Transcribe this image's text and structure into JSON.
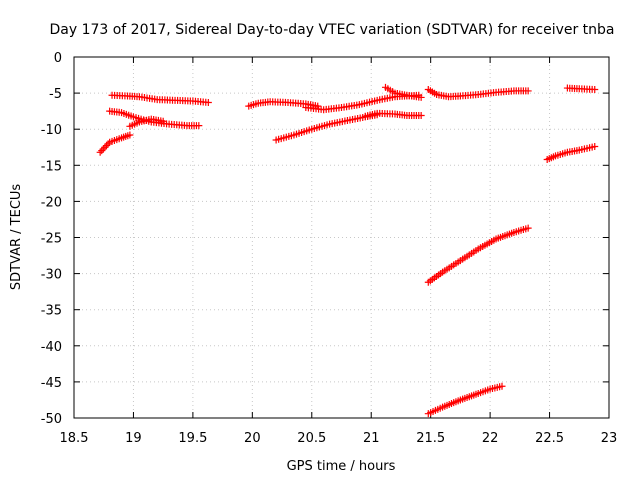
{
  "chart_data": {
    "type": "scatter",
    "title": "Day 173 of 2017, Sidereal Day-to-day VTEC variation (SDTVAR) for receiver tnba",
    "xlabel": "GPS time / hours",
    "ylabel": "SDTVAR / TECUs",
    "xlim": [
      18.5,
      23
    ],
    "ylim": [
      -50,
      0
    ],
    "xticks": [
      18.5,
      19,
      19.5,
      20,
      20.5,
      21,
      21.5,
      22,
      22.5,
      23
    ],
    "yticks": [
      0,
      -5,
      -10,
      -15,
      -20,
      -25,
      -30,
      -35,
      -40,
      -45,
      -50
    ],
    "xtick_labels": [
      "18.5",
      "19",
      "19.5",
      "20",
      "20.5",
      "21",
      "21.5",
      "22",
      "22.5",
      "23"
    ],
    "ytick_labels": [
      "0",
      "-5",
      "-10",
      "-15",
      "-20",
      "-25",
      "-30",
      "-35",
      "-40",
      "-45",
      "-50"
    ],
    "grid": true,
    "marker": "plus",
    "color": "#ff0000",
    "series": [
      {
        "x": [
          18.72,
          18.8,
          18.9,
          18.97
        ],
        "y": [
          -13.2,
          -11.8,
          -11.2,
          -10.8
        ]
      },
      {
        "x": [
          18.82,
          18.95,
          19.05,
          19.2,
          19.35,
          19.5,
          19.63
        ],
        "y": [
          -5.3,
          -5.4,
          -5.5,
          -5.9,
          -6.0,
          -6.1,
          -6.3
        ]
      },
      {
        "x": [
          18.8,
          18.9,
          19.0,
          19.15,
          19.3,
          19.45,
          19.55
        ],
        "y": [
          -7.5,
          -7.7,
          -8.3,
          -9.0,
          -9.3,
          -9.5,
          -9.5
        ]
      },
      {
        "x": [
          18.97,
          19.05,
          19.15,
          19.25
        ],
        "y": [
          -9.6,
          -9.0,
          -8.6,
          -8.9
        ]
      },
      {
        "x": [
          19.97,
          20.05,
          20.15,
          20.3,
          20.45,
          20.55
        ],
        "y": [
          -6.8,
          -6.4,
          -6.2,
          -6.3,
          -6.5,
          -6.8
        ]
      },
      {
        "x": [
          20.2,
          20.35,
          20.5,
          20.65,
          20.8,
          20.95,
          21.05
        ],
        "y": [
          -11.5,
          -10.8,
          -10.0,
          -9.3,
          -8.8,
          -8.3,
          -8.0
        ]
      },
      {
        "x": [
          20.45,
          20.6,
          20.75,
          20.9,
          21.05,
          21.2,
          21.4
        ],
        "y": [
          -7.0,
          -7.3,
          -7.0,
          -6.6,
          -6.0,
          -5.5,
          -5.3
        ]
      },
      {
        "x": [
          20.95,
          21.05,
          21.2,
          21.3,
          21.42
        ],
        "y": [
          -8.2,
          -7.8,
          -7.9,
          -8.1,
          -8.1
        ]
      },
      {
        "x": [
          21.12,
          21.2,
          21.3,
          21.42
        ],
        "y": [
          -4.2,
          -5.0,
          -5.3,
          -5.6
        ]
      },
      {
        "x": [
          21.48,
          21.55,
          21.65,
          21.75,
          21.9,
          22.05,
          22.2,
          22.32
        ],
        "y": [
          -4.5,
          -5.2,
          -5.5,
          -5.4,
          -5.2,
          -4.9,
          -4.7,
          -4.7
        ]
      },
      {
        "x": [
          21.48,
          21.6,
          21.75,
          21.9,
          22.05,
          22.2,
          22.32
        ],
        "y": [
          -31.2,
          -29.8,
          -28.2,
          -26.6,
          -25.2,
          -24.3,
          -23.7
        ]
      },
      {
        "x": [
          21.48,
          21.6,
          21.75,
          21.9,
          22.0,
          22.1
        ],
        "y": [
          -49.4,
          -48.5,
          -47.5,
          -46.6,
          -46.0,
          -45.6
        ]
      },
      {
        "x": [
          22.48,
          22.55,
          22.65,
          22.75,
          22.88
        ],
        "y": [
          -14.2,
          -13.7,
          -13.2,
          -12.9,
          -12.4
        ]
      },
      {
        "x": [
          22.65,
          22.75,
          22.88
        ],
        "y": [
          -4.3,
          -4.4,
          -4.5
        ]
      }
    ]
  }
}
